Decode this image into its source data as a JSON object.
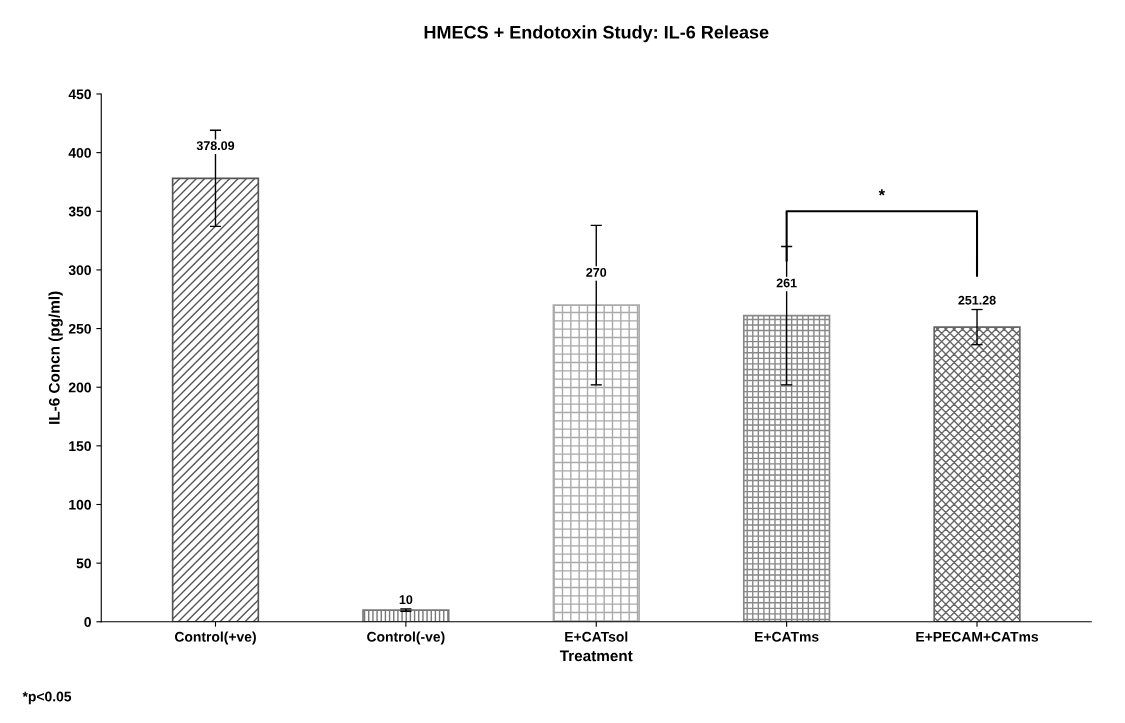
{
  "chart_data": {
    "type": "bar",
    "title": "HMECS + Endotoxin Study: IL-6 Release",
    "xlabel": "Treatment",
    "ylabel": "IL-6 Concn (pg/ml)",
    "categories": [
      "Control(+ve)",
      "Control(-ve)",
      "E+CATsol",
      "E+CATms",
      "E+PECAM+CATms"
    ],
    "values": [
      378.09,
      10,
      270,
      261,
      251.28
    ],
    "colors": [
      "#555555",
      "#777777",
      "#aaaaaa",
      "#888888",
      "#666666"
    ],
    "errors": [
      41,
      1,
      68,
      59,
      15
    ],
    "value_labels": [
      "378.09",
      "10",
      "270",
      "261",
      "251.28"
    ],
    "ylim": [
      0,
      450
    ],
    "yticks": [
      0,
      50,
      100,
      150,
      200,
      250,
      300,
      350,
      400,
      450
    ],
    "grid": false,
    "annotations": [
      "*",
      "*p<0.05"
    ]
  }
}
